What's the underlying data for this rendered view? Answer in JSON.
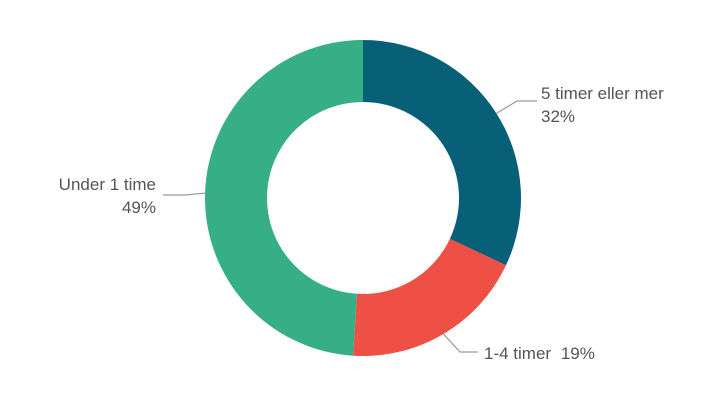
{
  "chart_data": {
    "type": "pie",
    "variant": "donut",
    "title": "",
    "slices": [
      {
        "label": "5 timer eller mer",
        "value": 32,
        "value_label": "32%",
        "color": "#075f78"
      },
      {
        "label": "1-4 timer",
        "value": 19,
        "value_label": "19%",
        "color": "#ef5045"
      },
      {
        "label": "Under 1 time",
        "value": 49,
        "value_label": "49%",
        "color": "#36ae86"
      }
    ],
    "legend": "none",
    "leader_line_color": "#999999"
  }
}
